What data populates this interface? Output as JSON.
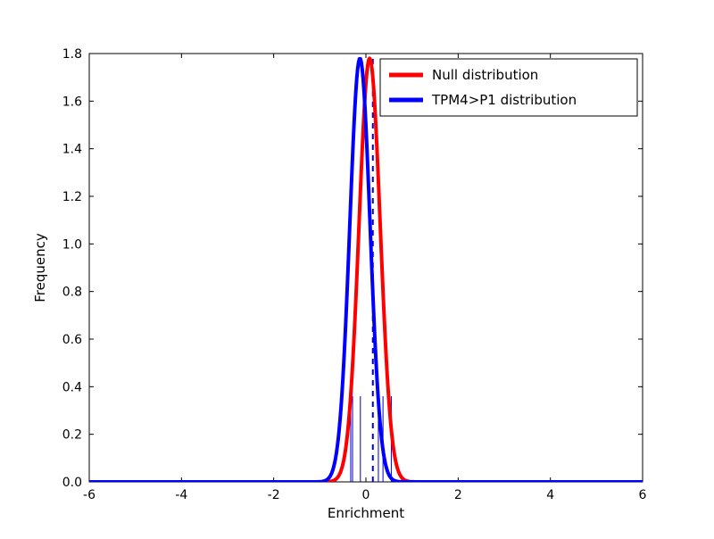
{
  "figure": {
    "background": "#ffffff",
    "frame_color": "#000000"
  },
  "chart_data": {
    "type": "line",
    "title": "",
    "xlabel": "Enrichment",
    "ylabel": "Frequency",
    "xlim": [
      -6,
      6
    ],
    "ylim": [
      0.0,
      1.8
    ],
    "x_ticks": [
      -6,
      -4,
      -2,
      0,
      2,
      4,
      6
    ],
    "y_ticks": [
      0.0,
      0.2,
      0.4,
      0.6,
      0.8,
      1.0,
      1.2,
      1.4,
      1.6,
      1.8
    ],
    "grid": false,
    "legend_position": "upper right",
    "series": [
      {
        "name": "Null distribution",
        "color": "#ff0000",
        "shape": "gaussian",
        "mean": 0.08,
        "sigma": 0.23,
        "peak": 1.78,
        "linewidth": 4
      },
      {
        "name": "TPM4>P1 distribution",
        "color": "#0000ff",
        "shape": "gaussian",
        "mean": -0.13,
        "sigma": 0.22,
        "peak": 1.78,
        "linewidth": 4
      }
    ],
    "annotations": {
      "dashed_vline": {
        "x": 0.15,
        "height": 1.78,
        "color": "#0000cc",
        "style": "dashed",
        "linewidth": 2
      },
      "data_vlines": {
        "x_values": [
          -0.33,
          -0.29,
          -0.12,
          0.27,
          0.37,
          0.55
        ],
        "height": 0.36,
        "color": "#0000cc",
        "linewidth": 1
      }
    }
  }
}
